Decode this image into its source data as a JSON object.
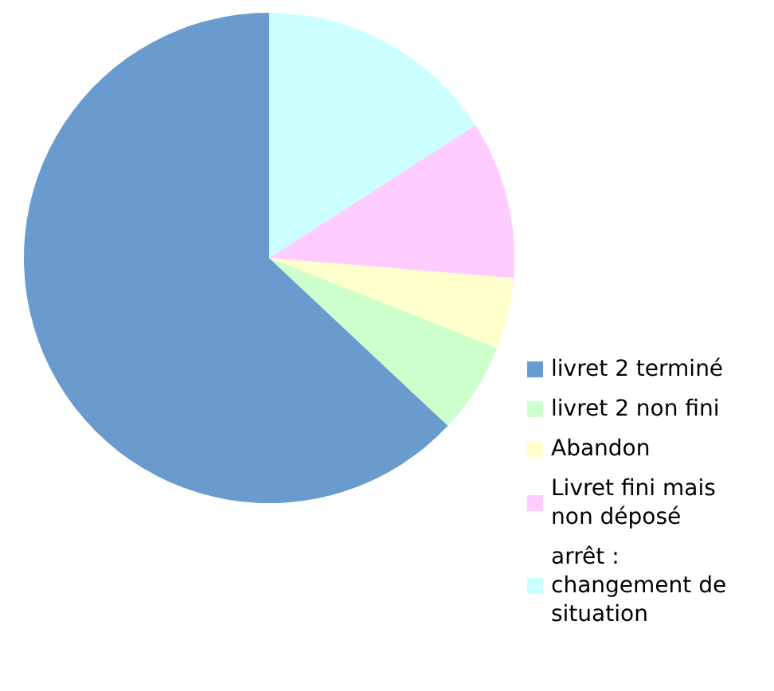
{
  "chart_data": {
    "type": "pie",
    "categories": [
      "livret 2 terminé",
      "livret 2 non fini",
      "Abandon",
      "Livret fini mais non déposé",
      "arrêt : changement de situation"
    ],
    "values": [
      63,
      6,
      4.7,
      10.4,
      15.9
    ],
    "colors": [
      "#6a9bcf",
      "#ccffcc",
      "#ffffcc",
      "#ffccff",
      "#ccffff"
    ],
    "legend": "right"
  }
}
